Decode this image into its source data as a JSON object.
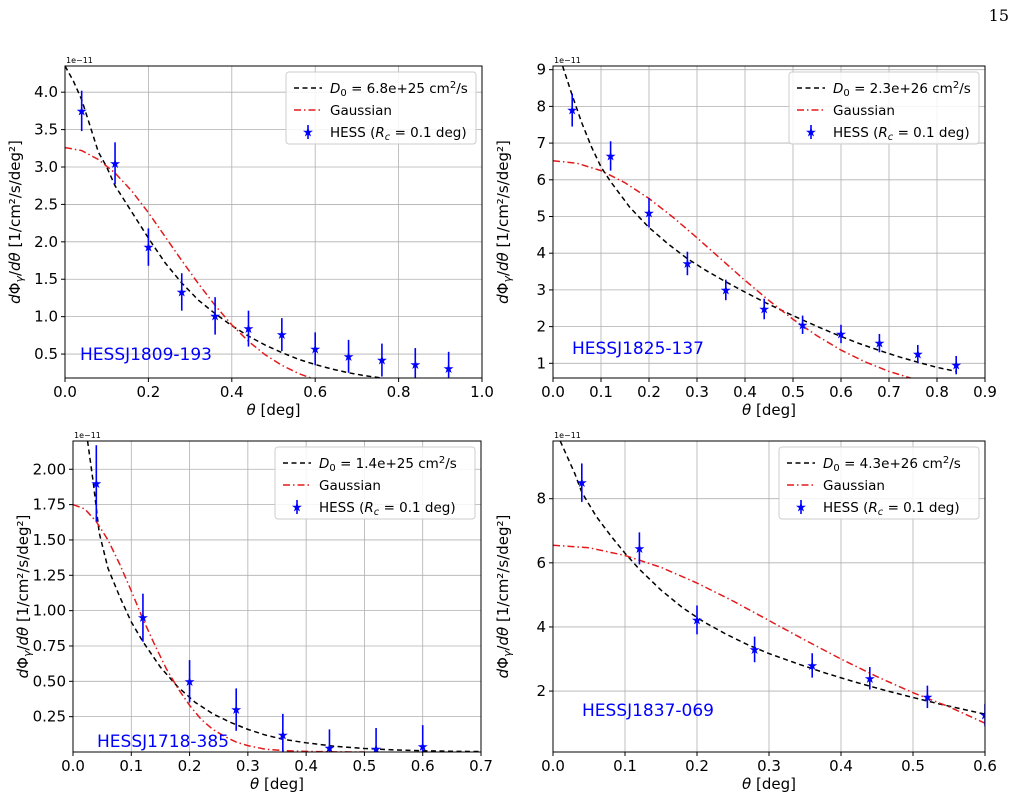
{
  "page": {
    "number": "15"
  },
  "chart_data": [
    {
      "type": "scatter",
      "source_label": "HESSJ1809-193",
      "offset_text": "1e−11",
      "xlabel": "θ [deg]",
      "ylabel": "dΦγ/dθ [1/cm²/s/deg²]",
      "xlim": [
        0,
        1.0
      ],
      "ylim": [
        0.18,
        4.35
      ],
      "xticks": [
        0,
        0.2,
        0.4,
        0.6,
        0.8,
        1.0
      ],
      "xtick_labels": [
        "0.0",
        "0.2",
        "0.4",
        "0.6",
        "0.8",
        "1.0"
      ],
      "yticks": [
        0.5,
        1.0,
        1.5,
        2.0,
        2.5,
        3.0,
        3.5,
        4.0
      ],
      "ytick_labels": [
        "0.5",
        "1.0",
        "1.5",
        "2.0",
        "2.5",
        "3.0",
        "3.5",
        "4.0"
      ],
      "grid": true,
      "legend_position": "top-right",
      "series": [
        {
          "name": "D0 = 6.8e+25 cm²/s",
          "kind": "dashed-line",
          "color": "#000000",
          "x": [
            0.0,
            0.02,
            0.04,
            0.06,
            0.08,
            0.1,
            0.12,
            0.16,
            0.2,
            0.24,
            0.28,
            0.32,
            0.36,
            0.4,
            0.44,
            0.48,
            0.52,
            0.56,
            0.6,
            0.64,
            0.68,
            0.72,
            0.76,
            0.8
          ],
          "y": [
            4.35,
            4.15,
            3.9,
            3.55,
            3.2,
            3.0,
            2.75,
            2.4,
            2.05,
            1.72,
            1.45,
            1.22,
            1.04,
            0.88,
            0.74,
            0.62,
            0.52,
            0.43,
            0.36,
            0.3,
            0.25,
            0.21,
            0.18,
            0.15
          ]
        },
        {
          "name": "Gaussian",
          "kind": "dashdot-line",
          "color": "#e31a1c",
          "x": [
            0.0,
            0.04,
            0.08,
            0.12,
            0.16,
            0.2,
            0.24,
            0.28,
            0.32,
            0.36,
            0.4,
            0.44,
            0.48,
            0.52,
            0.56,
            0.6,
            0.64
          ],
          "y": [
            3.26,
            3.22,
            3.1,
            2.92,
            2.68,
            2.39,
            2.07,
            1.75,
            1.44,
            1.15,
            0.89,
            0.67,
            0.49,
            0.35,
            0.24,
            0.16,
            0.1
          ]
        },
        {
          "name": "HESS (Rc = 0.1 deg)",
          "kind": "points",
          "color": "#0000ff",
          "x": [
            0.04,
            0.12,
            0.2,
            0.28,
            0.36,
            0.44,
            0.52,
            0.6,
            0.68,
            0.76,
            0.84,
            0.92
          ],
          "y": [
            3.75,
            3.05,
            1.93,
            1.33,
            1.01,
            0.84,
            0.76,
            0.57,
            0.47,
            0.42,
            0.36,
            0.31
          ],
          "err": [
            0.27,
            0.28,
            0.25,
            0.25,
            0.25,
            0.24,
            0.22,
            0.22,
            0.22,
            0.22,
            0.22,
            0.22
          ]
        }
      ]
    },
    {
      "type": "scatter",
      "source_label": "HESSJ1825-137",
      "offset_text": "1e−11",
      "xlabel": "θ [deg]",
      "ylabel": "dΦγ/dθ [1/cm²/s/deg²]",
      "xlim": [
        0,
        0.9
      ],
      "ylim": [
        0.6,
        9.1
      ],
      "xticks": [
        0,
        0.1,
        0.2,
        0.3,
        0.4,
        0.5,
        0.6,
        0.7,
        0.8,
        0.9
      ],
      "xtick_labels": [
        "0.0",
        "0.1",
        "0.2",
        "0.3",
        "0.4",
        "0.5",
        "0.6",
        "0.7",
        "0.8",
        "0.9"
      ],
      "yticks": [
        1,
        2,
        3,
        4,
        5,
        6,
        7,
        8,
        9
      ],
      "ytick_labels": [
        "1",
        "2",
        "3",
        "4",
        "5",
        "6",
        "7",
        "8",
        "9"
      ],
      "grid": true,
      "legend_position": "top-right",
      "series": [
        {
          "name": "D0 = 2.3e+26 cm²/s",
          "kind": "dashed-line",
          "color": "#000000",
          "x": [
            0.02,
            0.04,
            0.06,
            0.08,
            0.1,
            0.12,
            0.16,
            0.2,
            0.24,
            0.28,
            0.32,
            0.36,
            0.4,
            0.44,
            0.48,
            0.52,
            0.56,
            0.6,
            0.64,
            0.68,
            0.72,
            0.76,
            0.8,
            0.84
          ],
          "y": [
            9.1,
            8.3,
            7.55,
            6.9,
            6.35,
            5.95,
            5.25,
            4.7,
            4.25,
            3.85,
            3.52,
            3.22,
            2.94,
            2.67,
            2.42,
            2.18,
            1.95,
            1.73,
            1.53,
            1.35,
            1.18,
            1.03,
            0.89,
            0.78
          ]
        },
        {
          "name": "Gaussian",
          "kind": "dashdot-line",
          "color": "#e31a1c",
          "x": [
            0.0,
            0.05,
            0.1,
            0.15,
            0.2,
            0.25,
            0.3,
            0.35,
            0.4,
            0.45,
            0.5,
            0.55,
            0.6,
            0.65,
            0.7,
            0.75,
            0.8
          ],
          "y": [
            6.52,
            6.45,
            6.25,
            5.92,
            5.49,
            4.98,
            4.42,
            3.84,
            3.26,
            2.71,
            2.2,
            1.75,
            1.36,
            1.04,
            0.78,
            0.58,
            0.42
          ]
        },
        {
          "name": "HESS (Rc = 0.1 deg)",
          "kind": "points",
          "color": "#0000ff",
          "x": [
            0.04,
            0.12,
            0.2,
            0.28,
            0.36,
            0.44,
            0.52,
            0.6,
            0.68,
            0.76,
            0.84
          ],
          "y": [
            7.9,
            6.65,
            5.1,
            3.72,
            3.0,
            2.48,
            2.05,
            1.8,
            1.55,
            1.25,
            0.95
          ],
          "err": [
            0.45,
            0.4,
            0.4,
            0.32,
            0.28,
            0.28,
            0.25,
            0.25,
            0.25,
            0.25,
            0.25
          ]
        }
      ]
    },
    {
      "type": "scatter",
      "source_label": "HESSJ1718-385",
      "offset_text": "1e−11",
      "xlabel": "θ [deg]",
      "ylabel": "dΦγ/dθ [1/cm²/s/deg²]",
      "xlim": [
        0,
        0.7
      ],
      "ylim": [
        0.0,
        2.2
      ],
      "xticks": [
        0,
        0.1,
        0.2,
        0.3,
        0.4,
        0.5,
        0.6,
        0.7
      ],
      "xtick_labels": [
        "0.0",
        "0.1",
        "0.2",
        "0.3",
        "0.4",
        "0.5",
        "0.6",
        "0.7"
      ],
      "yticks": [
        0.25,
        0.5,
        0.75,
        1.0,
        1.25,
        1.5,
        1.75,
        2.0
      ],
      "ytick_labels": [
        "0.25",
        "0.50",
        "0.75",
        "1.00",
        "1.25",
        "1.50",
        "1.75",
        "2.00"
      ],
      "grid": true,
      "legend_position": "top-right",
      "series": [
        {
          "name": "D0 = 1.4e+25 cm²/s",
          "kind": "dashed-line",
          "color": "#000000",
          "x": [
            0.025,
            0.035,
            0.045,
            0.06,
            0.08,
            0.1,
            0.12,
            0.15,
            0.18,
            0.21,
            0.24,
            0.27,
            0.3,
            0.33,
            0.36,
            0.4,
            0.45,
            0.5,
            0.55,
            0.6,
            0.65,
            0.7
          ],
          "y": [
            2.2,
            1.9,
            1.55,
            1.3,
            1.1,
            0.92,
            0.78,
            0.6,
            0.46,
            0.35,
            0.27,
            0.21,
            0.16,
            0.12,
            0.09,
            0.065,
            0.04,
            0.025,
            0.015,
            0.009,
            0.005,
            0.003
          ]
        },
        {
          "name": "Gaussian",
          "kind": "dashdot-line",
          "color": "#e31a1c",
          "x": [
            0.0,
            0.02,
            0.04,
            0.06,
            0.08,
            0.1,
            0.12,
            0.14,
            0.16,
            0.18,
            0.2,
            0.22,
            0.24,
            0.26,
            0.28,
            0.3,
            0.33,
            0.36,
            0.4,
            0.45,
            0.5
          ],
          "y": [
            1.75,
            1.72,
            1.63,
            1.5,
            1.33,
            1.14,
            0.94,
            0.76,
            0.59,
            0.45,
            0.33,
            0.23,
            0.16,
            0.11,
            0.07,
            0.045,
            0.02,
            0.01,
            0.004,
            0.001,
            0.0
          ]
        },
        {
          "name": "HESS (Rc = 0.1 deg)",
          "kind": "points",
          "color": "#0000ff",
          "x": [
            0.04,
            0.12,
            0.2,
            0.28,
            0.36,
            0.44,
            0.52,
            0.6
          ],
          "y": [
            1.9,
            0.95,
            0.5,
            0.3,
            0.12,
            0.03,
            0.02,
            0.04
          ],
          "err": [
            0.27,
            0.17,
            0.15,
            0.15,
            0.15,
            0.13,
            0.15,
            0.15
          ]
        }
      ]
    },
    {
      "type": "scatter",
      "source_label": "HESSJ1837-069",
      "offset_text": "1e−11",
      "xlabel": "θ [deg]",
      "ylabel": "dΦγ/dθ [1/cm²/s/deg²]",
      "xlim": [
        0,
        0.6
      ],
      "ylim": [
        0.1,
        9.8
      ],
      "xticks": [
        0,
        0.1,
        0.2,
        0.3,
        0.4,
        0.5,
        0.6
      ],
      "xtick_labels": [
        "0.0",
        "0.1",
        "0.2",
        "0.3",
        "0.4",
        "0.5",
        "0.6"
      ],
      "yticks": [
        2,
        4,
        6,
        8
      ],
      "ytick_labels": [
        "2",
        "4",
        "6",
        "8"
      ],
      "grid": true,
      "legend_position": "top-right",
      "series": [
        {
          "name": "D0 = 4.3e+26 cm²/s",
          "kind": "dashed-line",
          "color": "#000000",
          "x": [
            0.01,
            0.02,
            0.03,
            0.04,
            0.06,
            0.08,
            0.1,
            0.12,
            0.15,
            0.18,
            0.21,
            0.24,
            0.27,
            0.3,
            0.34,
            0.38,
            0.42,
            0.46,
            0.5,
            0.54,
            0.58,
            0.6
          ],
          "y": [
            9.8,
            9.3,
            8.8,
            8.2,
            7.45,
            6.85,
            6.3,
            5.8,
            5.15,
            4.6,
            4.15,
            3.78,
            3.45,
            3.17,
            2.85,
            2.55,
            2.28,
            2.03,
            1.8,
            1.58,
            1.38,
            1.28
          ]
        },
        {
          "name": "Gaussian",
          "kind": "dashdot-line",
          "color": "#e31a1c",
          "x": [
            0.0,
            0.05,
            0.1,
            0.15,
            0.2,
            0.25,
            0.3,
            0.35,
            0.4,
            0.45,
            0.5,
            0.55,
            0.6
          ],
          "y": [
            6.55,
            6.47,
            6.23,
            5.86,
            5.37,
            4.81,
            4.2,
            3.59,
            3.0,
            2.45,
            1.95,
            1.51,
            1.0
          ]
        },
        {
          "name": "HESS (Rc = 0.1 deg)",
          "kind": "points",
          "color": "#0000ff",
          "x": [
            0.04,
            0.12,
            0.2,
            0.28,
            0.36,
            0.44,
            0.52,
            0.6
          ],
          "y": [
            8.5,
            6.45,
            4.22,
            3.3,
            2.8,
            2.4,
            1.82,
            1.25
          ],
          "err": [
            0.6,
            0.5,
            0.45,
            0.4,
            0.38,
            0.35,
            0.35,
            0.35
          ]
        }
      ]
    }
  ]
}
